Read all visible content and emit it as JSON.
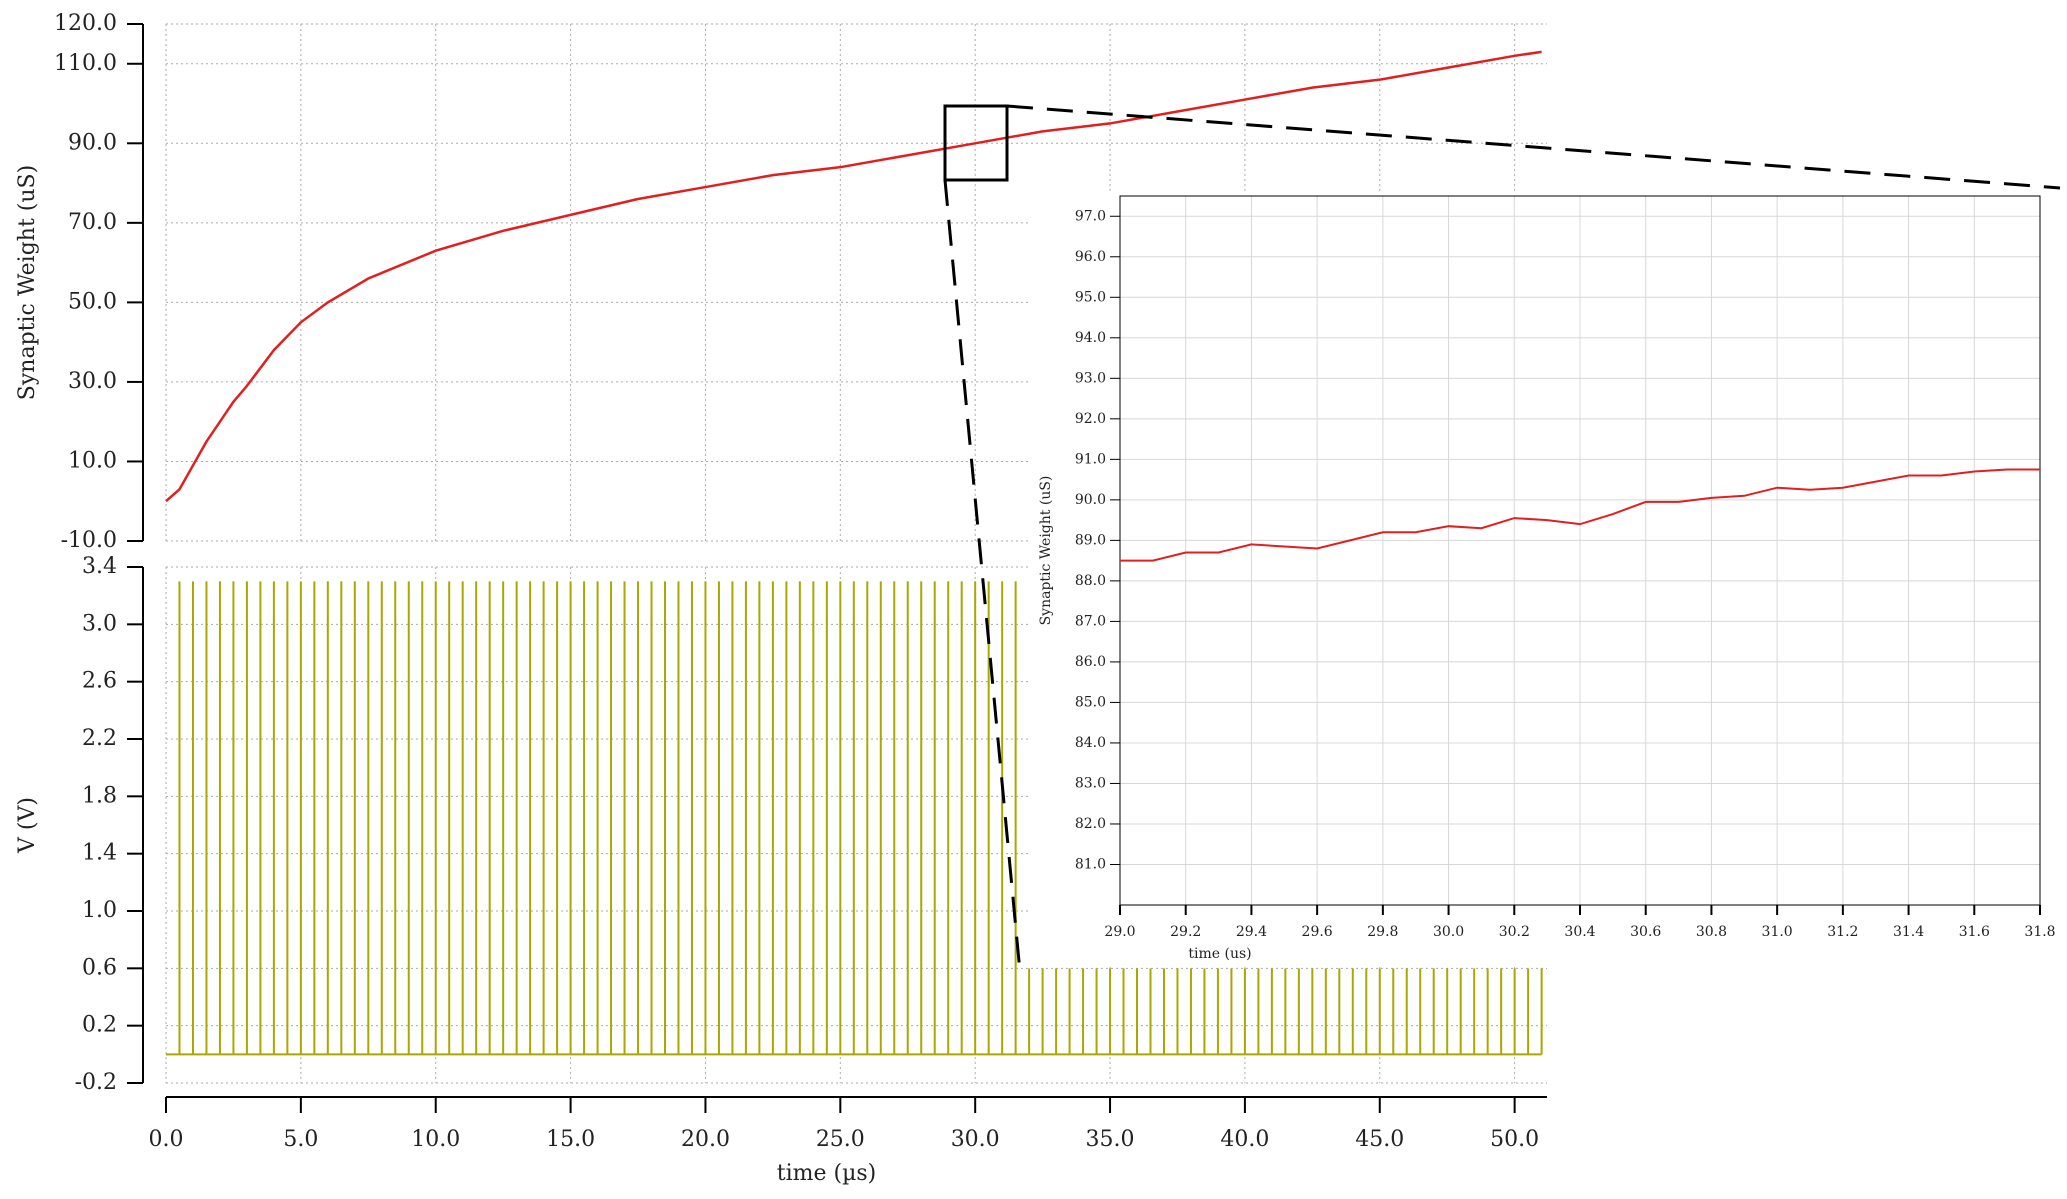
{
  "chart_data": [
    {
      "type": "line",
      "ylabel": "Synaptic Weight (uS)",
      "color": "#e02020",
      "grid": true,
      "xlim": [
        0,
        51.2
      ],
      "ylim": [
        -10,
        120
      ],
      "yticks": [
        {
          "value": -10,
          "label": "-10.0"
        },
        {
          "value": 10,
          "label": "10.0"
        },
        {
          "value": 30,
          "label": "30.0"
        },
        {
          "value": 50,
          "label": "50.0"
        },
        {
          "value": 70,
          "label": "70.0"
        },
        {
          "value": 90,
          "label": "90.0"
        },
        {
          "value": 110,
          "label": "110.0"
        },
        {
          "value": 120,
          "label": "120.0"
        }
      ],
      "x": [
        0,
        0.5,
        1,
        1.5,
        2,
        2.5,
        3,
        4,
        5,
        6,
        7.5,
        10,
        12.5,
        15,
        17.5,
        20,
        22.5,
        25,
        27.5,
        30,
        32.5,
        35,
        37.5,
        40,
        42.5,
        45,
        47.5,
        50,
        51
      ],
      "values": [
        0,
        3,
        9,
        15,
        20,
        25,
        29,
        38,
        45,
        50,
        56,
        63,
        68,
        72,
        76,
        79,
        82,
        84,
        87,
        90,
        93,
        95,
        98,
        101,
        104,
        106,
        109,
        112,
        113
      ]
    },
    {
      "type": "stem",
      "ylabel": "V (V)",
      "xlabel": "time (µs)",
      "color": "#a8a800",
      "grid": true,
      "xlim": [
        0,
        51.2
      ],
      "ylim": [
        -0.2,
        3.4
      ],
      "xticks": [
        {
          "value": 0,
          "label": "0.0"
        },
        {
          "value": 5,
          "label": "5.0"
        },
        {
          "value": 10,
          "label": "10.0"
        },
        {
          "value": 15,
          "label": "15.0"
        },
        {
          "value": 20,
          "label": "20.0"
        },
        {
          "value": 25,
          "label": "25.0"
        },
        {
          "value": 30,
          "label": "30.0"
        },
        {
          "value": 35,
          "label": "35.0"
        },
        {
          "value": 40,
          "label": "40.0"
        },
        {
          "value": 45,
          "label": "45.0"
        },
        {
          "value": 50,
          "label": "50.0"
        }
      ],
      "yticks": [
        -0.2,
        0.2,
        0.6,
        {
          "value": 1,
          "label": "1.0"
        },
        1.4,
        1.8,
        2.2,
        2.6,
        {
          "value": 3,
          "label": "3.0"
        },
        3.4
      ],
      "x": [
        0.5,
        1,
        1.5,
        2,
        2.5,
        3,
        3.5,
        4,
        4.5,
        5,
        5.5,
        6,
        6.5,
        7,
        7.5,
        8,
        8.5,
        9,
        9.5,
        10,
        10.5,
        11,
        11.5,
        12,
        12.5,
        13,
        13.5,
        14,
        14.5,
        15,
        15.5,
        16,
        16.5,
        17,
        17.5,
        18,
        18.5,
        19,
        19.5,
        20,
        20.5,
        21,
        21.5,
        22,
        22.5,
        23,
        23.5,
        24,
        24.5,
        25,
        25.5,
        26,
        26.5,
        27,
        27.5,
        28,
        28.5,
        29,
        29.5,
        30,
        30.5,
        31,
        31.5,
        32,
        32.5,
        33,
        33.5,
        34,
        34.5,
        35,
        35.5,
        36,
        36.5,
        37,
        37.5,
        38,
        38.5,
        39,
        39.5,
        40,
        40.5,
        41,
        41.5,
        42,
        42.5,
        43,
        43.5,
        44,
        44.5,
        45,
        45.5,
        46,
        46.5,
        47,
        47.5,
        48,
        48.5,
        49,
        49.5,
        50,
        50.5,
        51
      ],
      "values": [
        3.3,
        3.3,
        3.3,
        3.3,
        3.3,
        3.3,
        3.3,
        3.3,
        3.3,
        3.3,
        3.3,
        3.3,
        3.3,
        3.3,
        3.3,
        3.3,
        3.3,
        3.3,
        3.3,
        3.3,
        3.3,
        3.3,
        3.3,
        3.3,
        3.3,
        3.3,
        3.3,
        3.3,
        3.3,
        3.3,
        3.3,
        3.3,
        3.3,
        3.3,
        3.3,
        3.3,
        3.3,
        3.3,
        3.3,
        3.3,
        3.3,
        3.3,
        3.3,
        3.3,
        3.3,
        3.3,
        3.3,
        3.3,
        3.3,
        3.3,
        3.3,
        3.3,
        3.3,
        3.3,
        3.3,
        3.3,
        3.3,
        3.3,
        3.3,
        3.3,
        3.3,
        3.3,
        3.3,
        0.6,
        0.6,
        0.6,
        0.6,
        0.6,
        0.6,
        0.6,
        0.6,
        0.6,
        0.6,
        0.6,
        0.6,
        0.6,
        0.6,
        0.6,
        0.6,
        0.6,
        0.6,
        0.6,
        0.6,
        0.6,
        0.6,
        0.6,
        0.6,
        0.6,
        0.6,
        0.6,
        0.6,
        0.6,
        0.6,
        0.6,
        0.6,
        0.6,
        0.6,
        0.6,
        0.6,
        0.6,
        0.6,
        0.6
      ]
    },
    {
      "type": "line",
      "ylabel": "Synaptic Weight (uS)",
      "xlabel": "time (us)",
      "color": "#e02020",
      "grid": true,
      "xlim": [
        29.0,
        31.8
      ],
      "ylim": [
        80,
        97.5
      ],
      "xticks": [
        {
          "value": 29,
          "label": "29.0"
        },
        29.2,
        29.4,
        29.6,
        29.8,
        {
          "value": 30,
          "label": "30.0"
        },
        30.2,
        30.4,
        30.6,
        30.8,
        {
          "value": 31,
          "label": "31.0"
        },
        31.2,
        31.4,
        31.6,
        31.8
      ],
      "yticks": [
        {
          "value": 81,
          "label": "81.0"
        },
        {
          "value": 82,
          "label": "82.0"
        },
        {
          "value": 83,
          "label": "83.0"
        },
        {
          "value": 84,
          "label": "84.0"
        },
        {
          "value": 85,
          "label": "85.0"
        },
        {
          "value": 86,
          "label": "86.0"
        },
        {
          "value": 87,
          "label": "87.0"
        },
        {
          "value": 88,
          "label": "88.0"
        },
        {
          "value": 89,
          "label": "89.0"
        },
        {
          "value": 90,
          "label": "90.0"
        },
        {
          "value": 91,
          "label": "91.0"
        },
        {
          "value": 92,
          "label": "92.0"
        },
        {
          "value": 93,
          "label": "93.0"
        },
        {
          "value": 94,
          "label": "94.0"
        },
        {
          "value": 95,
          "label": "95.0"
        },
        {
          "value": 96,
          "label": "96.0"
        },
        {
          "value": 97,
          "label": "97.0"
        }
      ],
      "x": [
        29.0,
        29.1,
        29.2,
        29.3,
        29.4,
        29.5,
        29.6,
        29.7,
        29.8,
        29.9,
        30.0,
        30.1,
        30.2,
        30.3,
        30.4,
        30.5,
        30.6,
        30.7,
        30.8,
        30.9,
        31.0,
        31.1,
        31.2,
        31.3,
        31.4,
        31.5,
        31.6,
        31.7,
        31.8
      ],
      "values": [
        88.5,
        88.5,
        88.7,
        88.7,
        88.9,
        88.85,
        88.8,
        89.0,
        89.2,
        89.2,
        89.35,
        89.3,
        89.55,
        89.5,
        89.4,
        89.65,
        89.95,
        89.95,
        90.05,
        90.1,
        90.3,
        90.25,
        90.3,
        90.45,
        90.6,
        90.6,
        90.7,
        90.75,
        90.75
      ]
    }
  ]
}
